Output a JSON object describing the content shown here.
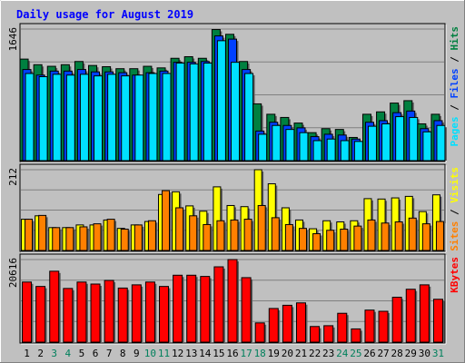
{
  "chart_data": {
    "type": "bar",
    "title": "Daily usage for August 2019",
    "categories": [
      "1",
      "2",
      "3",
      "4",
      "5",
      "6",
      "7",
      "8",
      "9",
      "10",
      "11",
      "12",
      "13",
      "14",
      "15",
      "16",
      "17",
      "18",
      "19",
      "20",
      "21",
      "22",
      "23",
      "24",
      "25",
      "26",
      "27",
      "28",
      "29",
      "30",
      "31"
    ],
    "weekend_days": [
      "3",
      "4",
      "10",
      "11",
      "17",
      "18",
      "24",
      "25",
      "31"
    ],
    "colors": {
      "hits": "#008040",
      "files": "#0040ff",
      "pages": "#00e0ff",
      "visits": "#ffff00",
      "sites": "#ff8000",
      "kbytes": "#ff0000",
      "weekday_label": "#000000",
      "weekend_label": "#00805c",
      "title": "#0000ff",
      "panel": "#c0c0c0"
    },
    "panels": [
      {
        "id": "requests",
        "max_label": "1646",
        "ymax": 1646,
        "legend": [
          {
            "text": "Pages",
            "color": "#00e0ff"
          },
          {
            "text": " / ",
            "color": "#000000"
          },
          {
            "text": "Files",
            "color": "#0040ff"
          },
          {
            "text": " / ",
            "color": "#000000"
          },
          {
            "text": "Hits",
            "color": "#008040"
          }
        ],
        "series": [
          {
            "name": "Hits",
            "color": "#008040",
            "values": [
              1270,
              1200,
              1180,
              1200,
              1240,
              1190,
              1175,
              1150,
              1150,
              1180,
              1160,
              1280,
              1300,
              1280,
              1640,
              1580,
              1240,
              710,
              580,
              540,
              470,
              350,
              400,
              390,
              290,
              580,
              610,
              720,
              750,
              460,
              580
            ]
          },
          {
            "name": "Files",
            "color": "#0040ff",
            "values": [
              1140,
              1070,
              1120,
              1120,
              1140,
              1110,
              1110,
              1100,
              1070,
              1100,
              1120,
              1230,
              1230,
              1240,
              1560,
              1520,
              1140,
              370,
              480,
              440,
              410,
              300,
              330,
              320,
              270,
              480,
              500,
              600,
              620,
              400,
              500
            ]
          },
          {
            "name": "Pages",
            "color": "#00e0ff",
            "values": [
              1090,
              1050,
              1080,
              1070,
              1080,
              1060,
              1080,
              1060,
              1070,
              1090,
              1090,
              1220,
              1210,
              1220,
              1500,
              1230,
              1090,
              330,
              440,
              390,
              350,
              250,
              270,
              250,
              240,
              430,
              460,
              550,
              540,
              360,
              440
            ]
          }
        ]
      },
      {
        "id": "visits",
        "max_label": "212",
        "ymax": 212,
        "legend": [
          {
            "text": "Sites",
            "color": "#ff8000"
          },
          {
            "text": " / ",
            "color": "#000000"
          },
          {
            "text": "Visits",
            "color": "#ffff00"
          }
        ],
        "series": [
          {
            "name": "Visits",
            "color": "#ffff00",
            "values": [
              82,
              91,
              60,
              60,
              67,
              67,
              80,
              58,
              67,
              76,
              147,
              154,
              117,
              103,
              167,
              118,
              115,
              212,
              175,
              112,
              80,
              57,
              78,
              75,
              78,
              136,
              135,
              138,
              142,
              102,
              146
            ]
          },
          {
            "name": "Sites",
            "color": "#ff8000",
            "values": [
              82,
              92,
              60,
              60,
              62,
              70,
              82,
              56,
              67,
              78,
              157,
              112,
              91,
              68,
              78,
              80,
              82,
              118,
              86,
              68,
              58,
              44,
              53,
              56,
              64,
              80,
              72,
              75,
              85,
              70,
              76
            ]
          }
        ]
      },
      {
        "id": "kbytes",
        "max_label": "20616",
        "ymax": 20616,
        "legend": [
          {
            "text": "KBytes",
            "color": "#ff0000"
          }
        ],
        "series": [
          {
            "name": "KBytes",
            "color": "#ff0000",
            "values": [
              15000,
              13900,
              17700,
              13400,
              15000,
              14500,
              15400,
              13500,
              14300,
              15000,
              13900,
              16700,
              16700,
              16400,
              18800,
              20616,
              16100,
              4800,
              8400,
              9200,
              9800,
              3900,
              4100,
              7200,
              3300,
              8000,
              7700,
              11200,
              13200,
              14300,
              10700
            ]
          }
        ]
      }
    ]
  }
}
